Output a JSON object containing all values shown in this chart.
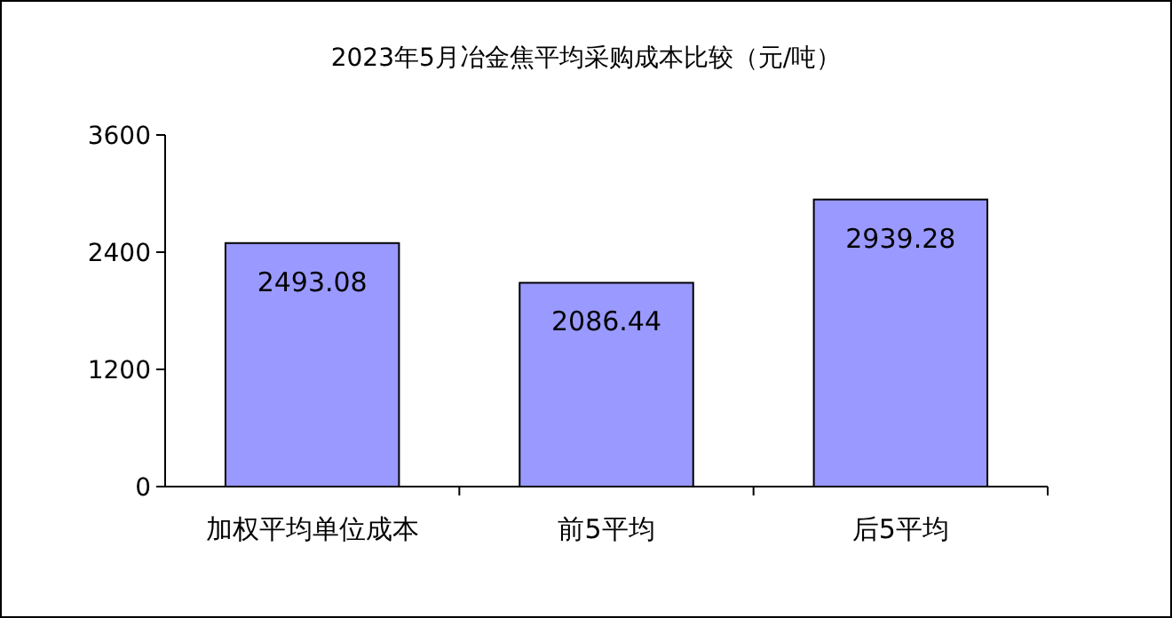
{
  "chart_data": {
    "type": "bar",
    "title": "2023年5月冶金焦平均采购成本比较（元/吨）",
    "categories": [
      "加权平均单位成本",
      "前5平均",
      "后5平均"
    ],
    "values": [
      2493.08,
      2086.44,
      2939.28
    ],
    "color": "#9999ff",
    "ylim": [
      0,
      3600
    ],
    "yticks": [
      0,
      1200,
      2400,
      3600
    ],
    "data_labels": true,
    "grid": false
  }
}
